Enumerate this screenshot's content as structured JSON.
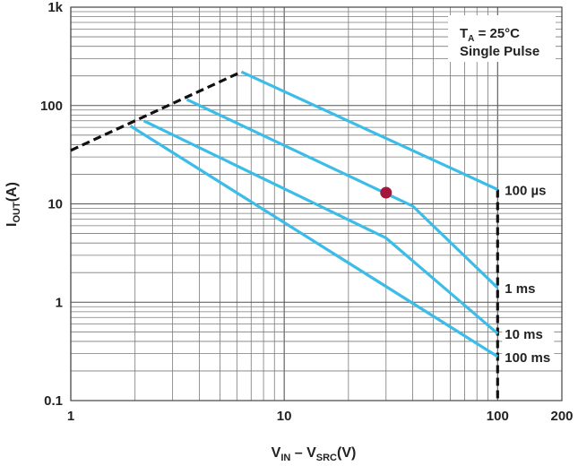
{
  "chart_data": {
    "type": "line",
    "xscale": "log",
    "yscale": "log",
    "xlim": [
      1,
      200
    ],
    "ylim": [
      0.1,
      1000
    ],
    "grid": true,
    "x_ticks": [
      {
        "value": 1,
        "label": "1"
      },
      {
        "value": 10,
        "label": "10"
      },
      {
        "value": 100,
        "label": "100"
      },
      {
        "value": 200,
        "label": "200"
      }
    ],
    "y_ticks": [
      {
        "value": 0.1,
        "label": "0.1"
      },
      {
        "value": 1,
        "label": "1"
      },
      {
        "value": 10,
        "label": "10"
      },
      {
        "value": 100,
        "label": "100"
      },
      {
        "value": 1000,
        "label": "1k"
      }
    ],
    "xlabel": {
      "main": "V",
      "sub1": "IN",
      "mid": " – V",
      "sub2": "SRC",
      "end": "(V)"
    },
    "ylabel": {
      "main": "I",
      "sub": "OUT",
      "end": "(A)"
    },
    "legend": {
      "line1_main": "T",
      "line1_sub": "A",
      "line1_end": " = 25°C",
      "line2": "Single Pulse",
      "position": "top-right"
    },
    "series": [
      {
        "name": "100 µs",
        "color": "#3bbde8",
        "points": [
          [
            6.3,
            220
          ],
          [
            100,
            14
          ]
        ]
      },
      {
        "name": "1 ms",
        "color": "#3bbde8",
        "points": [
          [
            3.5,
            115
          ],
          [
            40,
            9.5
          ],
          [
            100,
            1.4
          ]
        ]
      },
      {
        "name": "10 ms",
        "color": "#3bbde8",
        "points": [
          [
            2.2,
            70
          ],
          [
            30,
            4.5
          ],
          [
            100,
            0.48
          ]
        ]
      },
      {
        "name": "100 ms",
        "color": "#3bbde8",
        "points": [
          [
            1.9,
            62
          ],
          [
            100,
            0.28
          ]
        ]
      }
    ],
    "boundary": {
      "color": "#111111",
      "segments": [
        [
          [
            1,
            35
          ],
          [
            6.3,
            220
          ]
        ],
        [
          [
            100,
            14
          ],
          [
            100,
            0.1
          ]
        ]
      ]
    },
    "marker": {
      "x": 30,
      "y": 13,
      "color": "#a5163d"
    }
  }
}
